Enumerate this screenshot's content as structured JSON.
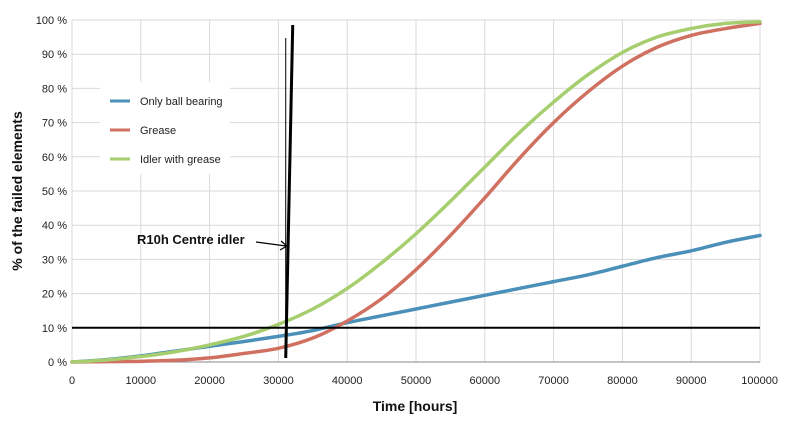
{
  "chart_data": {
    "type": "line",
    "xlabel": "Time [hours]",
    "ylabel": "% of the failed elements",
    "xlim": [
      0,
      100000
    ],
    "ylim": [
      0,
      100
    ],
    "x_ticks": [
      "0",
      "10000",
      "20000",
      "30000",
      "40000",
      "50000",
      "60000",
      "70000",
      "80000",
      "90000",
      "100000"
    ],
    "y_ticks": [
      "0 %",
      "10 %",
      "20 %",
      "30 %",
      "40 %",
      "50 %",
      "60 %",
      "70 %",
      "80 %",
      "90 %",
      "100 %"
    ],
    "grid": true,
    "legend_position": "upper-left",
    "x": [
      0,
      5000,
      10000,
      15000,
      20000,
      25000,
      30000,
      35000,
      40000,
      45000,
      50000,
      55000,
      60000,
      65000,
      70000,
      75000,
      80000,
      85000,
      90000,
      95000,
      100000
    ],
    "series": [
      {
        "name": "Only ball bearing",
        "color": "#4a90b8",
        "values": [
          0,
          0.7,
          1.8,
          3.2,
          4.6,
          6.0,
          7.5,
          9.2,
          11.5,
          13.5,
          15.5,
          17.5,
          19.5,
          21.5,
          23.5,
          25.5,
          28.0,
          30.5,
          32.5,
          35.0,
          37.0
        ]
      },
      {
        "name": "Grease",
        "color": "#d07060",
        "values": [
          0,
          0.1,
          0.2,
          0.5,
          1.2,
          2.5,
          4.0,
          7.0,
          12.0,
          18.5,
          27.0,
          37.0,
          48.0,
          59.5,
          70.0,
          79.0,
          86.5,
          92.0,
          95.5,
          97.5,
          99.0
        ]
      },
      {
        "name": "Idler with grease",
        "color": "#a6ce6e",
        "values": [
          0,
          0.6,
          1.6,
          3.0,
          5.0,
          7.5,
          11.0,
          15.5,
          21.5,
          29.0,
          37.5,
          47.0,
          57.0,
          67.0,
          76.0,
          84.0,
          90.5,
          95.0,
          97.5,
          99.0,
          99.5
        ]
      }
    ],
    "reference_line": {
      "y": 10
    },
    "vertical_marker": {
      "x": 31500
    },
    "annotation": {
      "text": "R10h Centre idler"
    }
  }
}
